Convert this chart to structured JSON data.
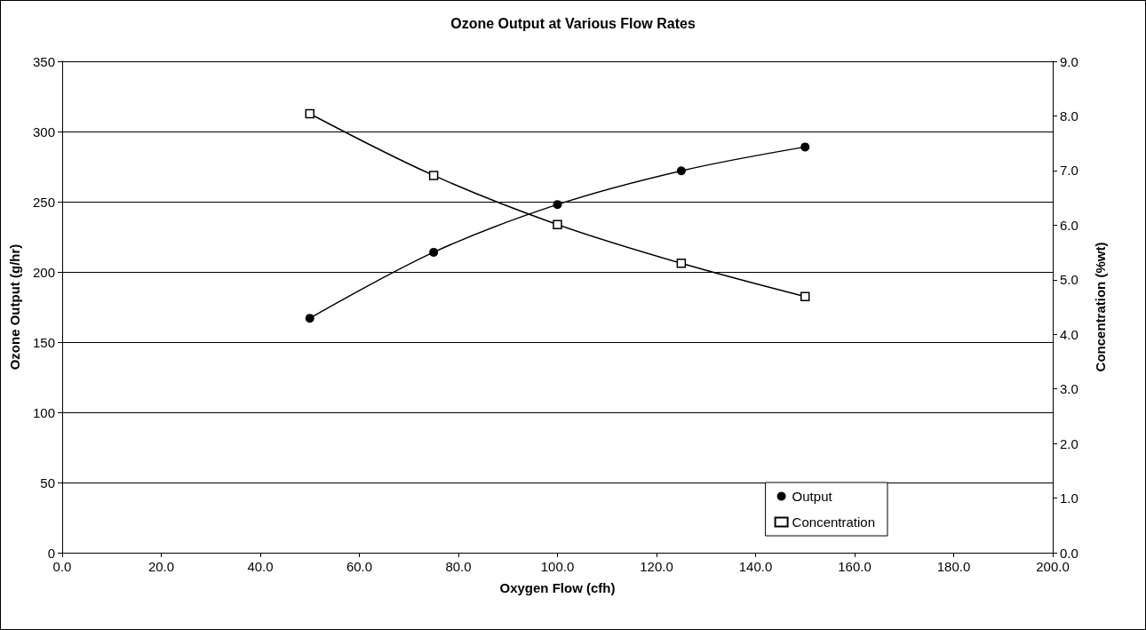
{
  "chart_data": {
    "type": "line",
    "title": "Ozone Output at Various Flow Rates",
    "xlabel": "Oxygen Flow (cfh)",
    "ylabel": "Ozone Output (g/hr)",
    "y2label": "Concentration (%wt)",
    "x": [
      50,
      75,
      100,
      125,
      150
    ],
    "series": [
      {
        "name": "Output",
        "color": "#000000",
        "marker": "circle",
        "values": [
          167,
          214,
          248,
          272,
          289
        ]
      },
      {
        "name": "Concentration",
        "color": "#000000",
        "marker": "square",
        "axis": "y2",
        "values": [
          8.04,
          6.91,
          6.01,
          5.3,
          4.69
        ]
      }
    ],
    "xlim": [
      0,
      200
    ],
    "xticks": [
      {
        "value": 0,
        "label": "0.0"
      },
      {
        "value": 20,
        "label": "20.0"
      },
      {
        "value": 40,
        "label": "40.0"
      },
      {
        "value": 60,
        "label": "60.0"
      },
      {
        "value": 80,
        "label": "80.0"
      },
      {
        "value": 100,
        "label": "100.0"
      },
      {
        "value": 120,
        "label": "120.0"
      },
      {
        "value": 140,
        "label": "140.0"
      },
      {
        "value": 160,
        "label": "160.0"
      },
      {
        "value": 180,
        "label": "180.0"
      },
      {
        "value": 200,
        "label": "200.0"
      }
    ],
    "ylim": [
      0,
      350
    ],
    "yticks": [
      0,
      50,
      100,
      150,
      200,
      250,
      300,
      350
    ],
    "y2lim": [
      0,
      9
    ],
    "y2ticks": [
      {
        "value": 0,
        "label": "0.0"
      },
      {
        "value": 1,
        "label": "1.0"
      },
      {
        "value": 2,
        "label": "2.0"
      },
      {
        "value": 3,
        "label": "3.0"
      },
      {
        "value": 4,
        "label": "4.0"
      },
      {
        "value": 5,
        "label": "5.0"
      },
      {
        "value": 6,
        "label": "6.0"
      },
      {
        "value": 7,
        "label": "7.0"
      },
      {
        "value": 8,
        "label": "8.0"
      },
      {
        "value": 9,
        "label": "9.0"
      }
    ],
    "grid": "y",
    "legend": "bottom right",
    "line_style": "solid"
  }
}
